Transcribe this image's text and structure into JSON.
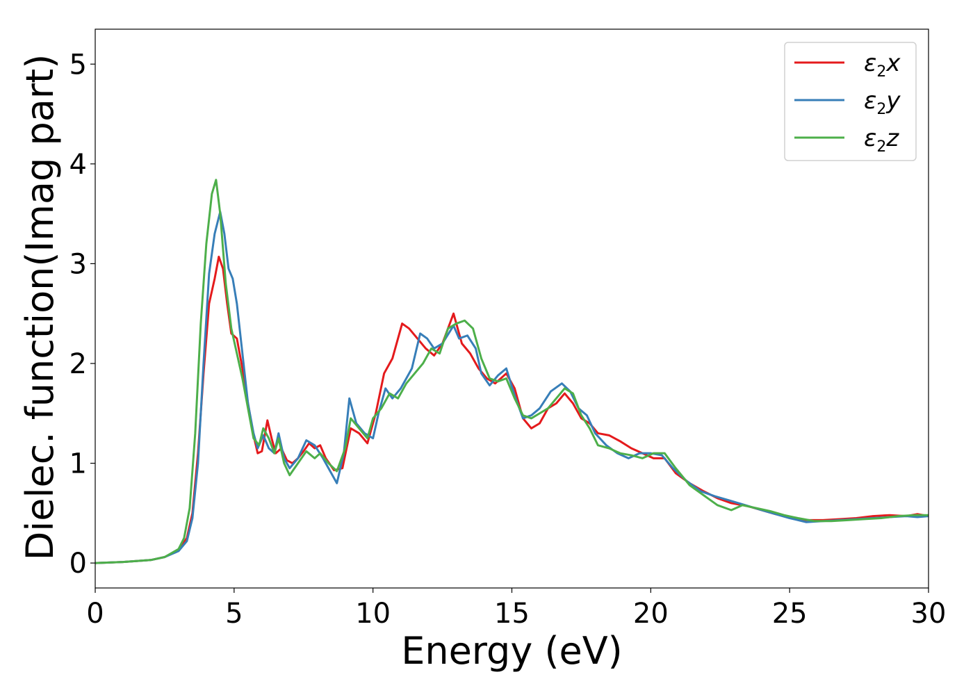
{
  "chart_data": {
    "type": "line",
    "xlabel": "Energy (eV)",
    "ylabel": "Dielec. function(Imag part)",
    "xlim": [
      0,
      30
    ],
    "ylim": [
      -0.25,
      5.35
    ],
    "xticks": [
      0,
      5,
      10,
      15,
      20,
      25,
      30
    ],
    "yticks": [
      0,
      1,
      2,
      3,
      4,
      5
    ],
    "grid": false,
    "legend_position": "top-right",
    "series": [
      {
        "name": "ε2x",
        "label_main": "ε",
        "label_sub": "2",
        "label_tail": "x",
        "color": "#e41a1c",
        "points": [
          [
            0,
            0
          ],
          [
            1,
            0.01
          ],
          [
            2,
            0.03
          ],
          [
            2.5,
            0.06
          ],
          [
            3,
            0.13
          ],
          [
            3.3,
            0.25
          ],
          [
            3.5,
            0.5
          ],
          [
            3.7,
            1.1
          ],
          [
            3.9,
            1.9
          ],
          [
            4.1,
            2.6
          ],
          [
            4.3,
            2.85
          ],
          [
            4.45,
            3.07
          ],
          [
            4.6,
            2.95
          ],
          [
            4.75,
            2.6
          ],
          [
            4.9,
            2.3
          ],
          [
            5.1,
            2.25
          ],
          [
            5.3,
            1.95
          ],
          [
            5.5,
            1.6
          ],
          [
            5.7,
            1.28
          ],
          [
            5.85,
            1.1
          ],
          [
            6.0,
            1.12
          ],
          [
            6.2,
            1.43
          ],
          [
            6.35,
            1.25
          ],
          [
            6.5,
            1.1
          ],
          [
            6.7,
            1.15
          ],
          [
            6.9,
            1.03
          ],
          [
            7.1,
            1.0
          ],
          [
            7.3,
            1.05
          ],
          [
            7.5,
            1.12
          ],
          [
            7.7,
            1.2
          ],
          [
            7.9,
            1.15
          ],
          [
            8.1,
            1.18
          ],
          [
            8.3,
            1.05
          ],
          [
            8.6,
            0.93
          ],
          [
            8.9,
            0.95
          ],
          [
            9.2,
            1.35
          ],
          [
            9.5,
            1.3
          ],
          [
            9.8,
            1.2
          ],
          [
            10.1,
            1.5
          ],
          [
            10.4,
            1.9
          ],
          [
            10.7,
            2.05
          ],
          [
            11.05,
            2.4
          ],
          [
            11.3,
            2.35
          ],
          [
            11.6,
            2.25
          ],
          [
            11.9,
            2.15
          ],
          [
            12.2,
            2.08
          ],
          [
            12.5,
            2.2
          ],
          [
            12.9,
            2.5
          ],
          [
            13.2,
            2.2
          ],
          [
            13.5,
            2.1
          ],
          [
            13.8,
            1.95
          ],
          [
            14.1,
            1.85
          ],
          [
            14.4,
            1.8
          ],
          [
            14.8,
            1.9
          ],
          [
            15.1,
            1.75
          ],
          [
            15.4,
            1.45
          ],
          [
            15.7,
            1.35
          ],
          [
            16.0,
            1.4
          ],
          [
            16.3,
            1.55
          ],
          [
            16.6,
            1.6
          ],
          [
            16.9,
            1.7
          ],
          [
            17.2,
            1.6
          ],
          [
            17.5,
            1.45
          ],
          [
            17.8,
            1.4
          ],
          [
            18.1,
            1.3
          ],
          [
            18.5,
            1.28
          ],
          [
            18.9,
            1.22
          ],
          [
            19.3,
            1.15
          ],
          [
            19.7,
            1.1
          ],
          [
            20.1,
            1.05
          ],
          [
            20.5,
            1.05
          ],
          [
            20.9,
            0.9
          ],
          [
            21.4,
            0.8
          ],
          [
            21.9,
            0.72
          ],
          [
            22.4,
            0.65
          ],
          [
            22.9,
            0.6
          ],
          [
            23.5,
            0.57
          ],
          [
            24.0,
            0.53
          ],
          [
            24.5,
            0.49
          ],
          [
            25.0,
            0.46
          ],
          [
            25.6,
            0.43
          ],
          [
            26.2,
            0.43
          ],
          [
            26.8,
            0.44
          ],
          [
            27.4,
            0.45
          ],
          [
            28.0,
            0.47
          ],
          [
            28.6,
            0.48
          ],
          [
            29.2,
            0.47
          ],
          [
            29.6,
            0.49
          ],
          [
            30,
            0.47
          ]
        ]
      },
      {
        "name": "ε2y",
        "label_main": "ε",
        "label_sub": "2",
        "label_tail": "y",
        "color": "#377eb8",
        "points": [
          [
            0,
            0
          ],
          [
            1,
            0.01
          ],
          [
            2,
            0.03
          ],
          [
            2.5,
            0.06
          ],
          [
            3,
            0.12
          ],
          [
            3.3,
            0.22
          ],
          [
            3.5,
            0.45
          ],
          [
            3.7,
            1.0
          ],
          [
            3.9,
            2.0
          ],
          [
            4.1,
            2.9
          ],
          [
            4.3,
            3.3
          ],
          [
            4.5,
            3.52
          ],
          [
            4.65,
            3.3
          ],
          [
            4.8,
            2.95
          ],
          [
            4.95,
            2.85
          ],
          [
            5.1,
            2.6
          ],
          [
            5.3,
            2.1
          ],
          [
            5.5,
            1.6
          ],
          [
            5.7,
            1.3
          ],
          [
            5.85,
            1.15
          ],
          [
            6.05,
            1.28
          ],
          [
            6.25,
            1.15
          ],
          [
            6.45,
            1.1
          ],
          [
            6.6,
            1.3
          ],
          [
            6.8,
            1.05
          ],
          [
            7.0,
            0.95
          ],
          [
            7.3,
            1.05
          ],
          [
            7.6,
            1.23
          ],
          [
            7.9,
            1.18
          ],
          [
            8.2,
            1.05
          ],
          [
            8.4,
            0.95
          ],
          [
            8.7,
            0.8
          ],
          [
            8.95,
            1.1
          ],
          [
            9.15,
            1.65
          ],
          [
            9.4,
            1.4
          ],
          [
            9.7,
            1.3
          ],
          [
            10.0,
            1.25
          ],
          [
            10.2,
            1.5
          ],
          [
            10.45,
            1.75
          ],
          [
            10.7,
            1.65
          ],
          [
            11.0,
            1.75
          ],
          [
            11.4,
            1.95
          ],
          [
            11.7,
            2.3
          ],
          [
            11.95,
            2.25
          ],
          [
            12.2,
            2.15
          ],
          [
            12.5,
            2.2
          ],
          [
            12.9,
            2.38
          ],
          [
            13.1,
            2.25
          ],
          [
            13.4,
            2.28
          ],
          [
            13.7,
            2.15
          ],
          [
            13.9,
            1.9
          ],
          [
            14.2,
            1.78
          ],
          [
            14.5,
            1.88
          ],
          [
            14.8,
            1.95
          ],
          [
            15.1,
            1.68
          ],
          [
            15.4,
            1.45
          ],
          [
            15.7,
            1.48
          ],
          [
            16.0,
            1.55
          ],
          [
            16.4,
            1.72
          ],
          [
            16.8,
            1.8
          ],
          [
            17.1,
            1.72
          ],
          [
            17.4,
            1.55
          ],
          [
            17.7,
            1.48
          ],
          [
            18.0,
            1.3
          ],
          [
            18.4,
            1.18
          ],
          [
            18.8,
            1.1
          ],
          [
            19.2,
            1.05
          ],
          [
            19.6,
            1.1
          ],
          [
            20.0,
            1.1
          ],
          [
            20.4,
            1.08
          ],
          [
            20.8,
            0.95
          ],
          [
            21.3,
            0.82
          ],
          [
            21.8,
            0.72
          ],
          [
            22.3,
            0.67
          ],
          [
            22.8,
            0.63
          ],
          [
            23.4,
            0.58
          ],
          [
            24.0,
            0.53
          ],
          [
            24.5,
            0.49
          ],
          [
            25.0,
            0.45
          ],
          [
            25.6,
            0.41
          ],
          [
            26.2,
            0.42
          ],
          [
            26.8,
            0.43
          ],
          [
            27.4,
            0.44
          ],
          [
            28.0,
            0.45
          ],
          [
            28.6,
            0.46
          ],
          [
            29.2,
            0.47
          ],
          [
            29.6,
            0.46
          ],
          [
            30,
            0.47
          ]
        ]
      },
      {
        "name": "ε2z",
        "label_main": "ε",
        "label_sub": "2",
        "label_tail": "z",
        "color": "#4daf4a",
        "points": [
          [
            0,
            0
          ],
          [
            1,
            0.01
          ],
          [
            2,
            0.03
          ],
          [
            2.5,
            0.06
          ],
          [
            3,
            0.14
          ],
          [
            3.2,
            0.25
          ],
          [
            3.4,
            0.55
          ],
          [
            3.6,
            1.3
          ],
          [
            3.8,
            2.4
          ],
          [
            4.0,
            3.2
          ],
          [
            4.2,
            3.7
          ],
          [
            4.35,
            3.84
          ],
          [
            4.5,
            3.5
          ],
          [
            4.7,
            2.8
          ],
          [
            4.9,
            2.35
          ],
          [
            5.1,
            2.1
          ],
          [
            5.3,
            1.85
          ],
          [
            5.5,
            1.55
          ],
          [
            5.7,
            1.25
          ],
          [
            5.9,
            1.18
          ],
          [
            6.05,
            1.35
          ],
          [
            6.25,
            1.25
          ],
          [
            6.45,
            1.1
          ],
          [
            6.6,
            1.25
          ],
          [
            6.8,
            1.0
          ],
          [
            7.0,
            0.88
          ],
          [
            7.3,
            1.0
          ],
          [
            7.6,
            1.12
          ],
          [
            7.9,
            1.05
          ],
          [
            8.1,
            1.1
          ],
          [
            8.4,
            1.0
          ],
          [
            8.7,
            0.92
          ],
          [
            9.0,
            1.15
          ],
          [
            9.2,
            1.45
          ],
          [
            9.5,
            1.35
          ],
          [
            9.8,
            1.25
          ],
          [
            10.0,
            1.45
          ],
          [
            10.3,
            1.55
          ],
          [
            10.6,
            1.7
          ],
          [
            10.9,
            1.65
          ],
          [
            11.2,
            1.8
          ],
          [
            11.5,
            1.9
          ],
          [
            11.8,
            2.0
          ],
          [
            12.1,
            2.15
          ],
          [
            12.4,
            2.1
          ],
          [
            12.7,
            2.35
          ],
          [
            13.0,
            2.4
          ],
          [
            13.3,
            2.43
          ],
          [
            13.6,
            2.35
          ],
          [
            13.9,
            2.05
          ],
          [
            14.2,
            1.85
          ],
          [
            14.5,
            1.82
          ],
          [
            14.8,
            1.85
          ],
          [
            15.1,
            1.65
          ],
          [
            15.4,
            1.48
          ],
          [
            15.7,
            1.45
          ],
          [
            16.0,
            1.5
          ],
          [
            16.3,
            1.55
          ],
          [
            16.6,
            1.65
          ],
          [
            16.9,
            1.75
          ],
          [
            17.2,
            1.7
          ],
          [
            17.5,
            1.48
          ],
          [
            17.8,
            1.35
          ],
          [
            18.1,
            1.18
          ],
          [
            18.5,
            1.15
          ],
          [
            18.9,
            1.1
          ],
          [
            19.3,
            1.08
          ],
          [
            19.7,
            1.05
          ],
          [
            20.1,
            1.1
          ],
          [
            20.5,
            1.1
          ],
          [
            20.9,
            0.95
          ],
          [
            21.4,
            0.78
          ],
          [
            21.9,
            0.68
          ],
          [
            22.4,
            0.58
          ],
          [
            22.9,
            0.53
          ],
          [
            23.3,
            0.58
          ],
          [
            23.8,
            0.55
          ],
          [
            24.3,
            0.52
          ],
          [
            24.8,
            0.48
          ],
          [
            25.3,
            0.45
          ],
          [
            25.9,
            0.42
          ],
          [
            26.5,
            0.42
          ],
          [
            27.1,
            0.43
          ],
          [
            27.7,
            0.44
          ],
          [
            28.3,
            0.45
          ],
          [
            28.9,
            0.47
          ],
          [
            29.5,
            0.48
          ],
          [
            30,
            0.48
          ]
        ]
      }
    ]
  }
}
